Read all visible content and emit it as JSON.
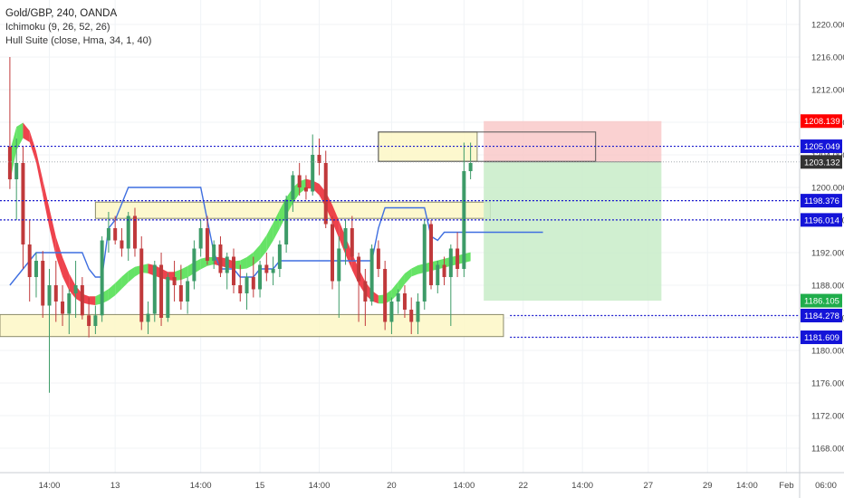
{
  "legend": {
    "symbol": "Gold/GBP, 240, OANDA",
    "indicator1": "Ichimoku (9, 26, 52, 26)",
    "indicator2": "Hull Suite (close, Hma, 34, 1, 40)"
  },
  "colors": {
    "up": "#3d9b68",
    "down": "#c0393b",
    "hull_up": "#55e055",
    "hull_down": "#ec2f3a",
    "ichimoku": "#3f6fe0",
    "zone_fill": "#fdf7c5",
    "zone_stroke": "#8a8a6a",
    "dotted": "#1a1acc",
    "stop_fill": "#f9c6c6",
    "target_fill": "#c8ecc8",
    "tag_red": "#ff0000",
    "tag_blue": "#1414d8",
    "tag_green": "#1fad4b",
    "tag_dark": "#333333"
  },
  "chart_data": {
    "type": "candlestick",
    "ylim": [
      1165,
      1223
    ],
    "xlim": [
      -1.5,
      120
    ],
    "y_ticks": [
      "1220.000",
      "1216.000",
      "1212.000",
      "1208.000",
      "1204.000",
      "1200.000",
      "1196.000",
      "1192.000",
      "1188.000",
      "1184.000",
      "1180.000",
      "1176.000",
      "1172.000",
      "1168.000"
    ],
    "x_labels": [
      {
        "index": 6,
        "label": "14:00"
      },
      {
        "index": 16,
        "label": "13"
      },
      {
        "index": 29,
        "label": "14:00"
      },
      {
        "index": 38,
        "label": "15"
      },
      {
        "index": 47,
        "label": "14:00"
      },
      {
        "index": 58,
        "label": "20"
      },
      {
        "index": 69,
        "label": "14:00"
      },
      {
        "index": 78,
        "label": "22"
      },
      {
        "index": 87,
        "label": "14:00"
      },
      {
        "index": 97,
        "label": "27"
      },
      {
        "index": 106,
        "label": "29"
      },
      {
        "index": 112,
        "label": "14:00"
      },
      {
        "index": 118,
        "label": "Feb"
      },
      {
        "index": 125,
        "label": "06:00"
      }
    ],
    "candles": [
      {
        "o": 1205.0,
        "h": 1216.0,
        "l": 1199.8,
        "c": 1201.0
      },
      {
        "o": 1201.0,
        "h": 1206.0,
        "l": 1196.0,
        "c": 1203.0
      },
      {
        "o": 1203.0,
        "h": 1205.0,
        "l": 1190.0,
        "c": 1193.0
      },
      {
        "o": 1193.0,
        "h": 1196.0,
        "l": 1186.0,
        "c": 1189.0
      },
      {
        "o": 1189.0,
        "h": 1192.0,
        "l": 1186.5,
        "c": 1191.0
      },
      {
        "o": 1191.0,
        "h": 1192.2,
        "l": 1184.0,
        "c": 1185.5
      },
      {
        "o": 1185.5,
        "h": 1190.0,
        "l": 1174.8,
        "c": 1188.0
      },
      {
        "o": 1188.0,
        "h": 1191.0,
        "l": 1183.5,
        "c": 1186.0
      },
      {
        "o": 1186.0,
        "h": 1188.0,
        "l": 1183.0,
        "c": 1184.5
      },
      {
        "o": 1184.5,
        "h": 1187.5,
        "l": 1182.0,
        "c": 1187.0
      },
      {
        "o": 1187.0,
        "h": 1191.0,
        "l": 1184.0,
        "c": 1188.0
      },
      {
        "o": 1188.0,
        "h": 1189.0,
        "l": 1183.8,
        "c": 1184.3
      },
      {
        "o": 1184.3,
        "h": 1186.5,
        "l": 1181.6,
        "c": 1183.0
      },
      {
        "o": 1183.0,
        "h": 1185.5,
        "l": 1182.0,
        "c": 1184.3
      },
      {
        "o": 1184.3,
        "h": 1194.0,
        "l": 1183.5,
        "c": 1193.5
      },
      {
        "o": 1193.5,
        "h": 1197.0,
        "l": 1192.0,
        "c": 1195.0
      },
      {
        "o": 1195.0,
        "h": 1196.5,
        "l": 1193.0,
        "c": 1193.5
      },
      {
        "o": 1193.5,
        "h": 1195.0,
        "l": 1191.5,
        "c": 1192.5
      },
      {
        "o": 1192.5,
        "h": 1197.0,
        "l": 1191.0,
        "c": 1196.5
      },
      {
        "o": 1196.5,
        "h": 1197.5,
        "l": 1191.5,
        "c": 1192.5
      },
      {
        "o": 1192.5,
        "h": 1194.0,
        "l": 1182.5,
        "c": 1183.5
      },
      {
        "o": 1183.5,
        "h": 1186.0,
        "l": 1182.0,
        "c": 1184.5
      },
      {
        "o": 1184.5,
        "h": 1191.0,
        "l": 1183.5,
        "c": 1190.5
      },
      {
        "o": 1190.5,
        "h": 1192.0,
        "l": 1183.0,
        "c": 1184.0
      },
      {
        "o": 1184.0,
        "h": 1189.5,
        "l": 1183.5,
        "c": 1189.0
      },
      {
        "o": 1189.0,
        "h": 1191.0,
        "l": 1186.0,
        "c": 1188.0
      },
      {
        "o": 1188.0,
        "h": 1190.5,
        "l": 1185.0,
        "c": 1186.0
      },
      {
        "o": 1186.0,
        "h": 1189.0,
        "l": 1184.5,
        "c": 1188.5
      },
      {
        "o": 1188.5,
        "h": 1193.5,
        "l": 1187.5,
        "c": 1192.5
      },
      {
        "o": 1192.5,
        "h": 1196.0,
        "l": 1191.5,
        "c": 1195.0
      },
      {
        "o": 1195.0,
        "h": 1196.5,
        "l": 1190.5,
        "c": 1191.0
      },
      {
        "o": 1191.0,
        "h": 1193.5,
        "l": 1190.0,
        "c": 1193.0
      },
      {
        "o": 1193.0,
        "h": 1194.0,
        "l": 1189.0,
        "c": 1189.5
      },
      {
        "o": 1189.5,
        "h": 1192.0,
        "l": 1187.5,
        "c": 1191.5
      },
      {
        "o": 1191.5,
        "h": 1192.5,
        "l": 1187.0,
        "c": 1188.0
      },
      {
        "o": 1188.0,
        "h": 1190.5,
        "l": 1186.0,
        "c": 1187.0
      },
      {
        "o": 1187.0,
        "h": 1189.5,
        "l": 1185.0,
        "c": 1189.0
      },
      {
        "o": 1189.0,
        "h": 1191.5,
        "l": 1186.5,
        "c": 1187.5
      },
      {
        "o": 1187.5,
        "h": 1191.0,
        "l": 1186.5,
        "c": 1190.5
      },
      {
        "o": 1190.5,
        "h": 1192.0,
        "l": 1188.5,
        "c": 1189.5
      },
      {
        "o": 1189.5,
        "h": 1191.5,
        "l": 1188.0,
        "c": 1190.0
      },
      {
        "o": 1190.0,
        "h": 1193.5,
        "l": 1189.0,
        "c": 1193.0
      },
      {
        "o": 1193.0,
        "h": 1199.0,
        "l": 1192.0,
        "c": 1198.5
      },
      {
        "o": 1198.5,
        "h": 1202.0,
        "l": 1197.0,
        "c": 1201.5
      },
      {
        "o": 1201.5,
        "h": 1203.0,
        "l": 1199.0,
        "c": 1200.0
      },
      {
        "o": 1200.0,
        "h": 1201.5,
        "l": 1198.5,
        "c": 1199.5
      },
      {
        "o": 1199.5,
        "h": 1206.5,
        "l": 1199.0,
        "c": 1204.0
      },
      {
        "o": 1204.0,
        "h": 1206.0,
        "l": 1201.5,
        "c": 1203.0
      },
      {
        "o": 1203.0,
        "h": 1204.5,
        "l": 1195.0,
        "c": 1195.5
      },
      {
        "o": 1195.5,
        "h": 1196.5,
        "l": 1187.5,
        "c": 1188.5
      },
      {
        "o": 1188.5,
        "h": 1194.0,
        "l": 1184.0,
        "c": 1192.5
      },
      {
        "o": 1192.5,
        "h": 1196.0,
        "l": 1190.5,
        "c": 1195.0
      },
      {
        "o": 1195.0,
        "h": 1196.5,
        "l": 1191.0,
        "c": 1191.5
      },
      {
        "o": 1191.5,
        "h": 1192.0,
        "l": 1183.5,
        "c": 1188.5
      },
      {
        "o": 1188.5,
        "h": 1190.0,
        "l": 1183.0,
        "c": 1186.0
      },
      {
        "o": 1186.0,
        "h": 1193.0,
        "l": 1185.5,
        "c": 1192.5
      },
      {
        "o": 1192.5,
        "h": 1193.5,
        "l": 1189.0,
        "c": 1190.0
      },
      {
        "o": 1190.0,
        "h": 1191.0,
        "l": 1182.5,
        "c": 1183.5
      },
      {
        "o": 1183.5,
        "h": 1186.5,
        "l": 1182.0,
        "c": 1186.0
      },
      {
        "o": 1186.0,
        "h": 1187.5,
        "l": 1184.5,
        "c": 1187.0
      },
      {
        "o": 1187.0,
        "h": 1188.0,
        "l": 1184.0,
        "c": 1185.0
      },
      {
        "o": 1185.0,
        "h": 1186.5,
        "l": 1182.0,
        "c": 1183.5
      },
      {
        "o": 1183.5,
        "h": 1187.0,
        "l": 1182.0,
        "c": 1186.0
      },
      {
        "o": 1186.0,
        "h": 1196.0,
        "l": 1185.0,
        "c": 1195.5
      },
      {
        "o": 1195.5,
        "h": 1196.0,
        "l": 1187.5,
        "c": 1188.0
      },
      {
        "o": 1188.0,
        "h": 1191.0,
        "l": 1187.0,
        "c": 1190.5
      },
      {
        "o": 1190.5,
        "h": 1191.5,
        "l": 1188.0,
        "c": 1189.0
      },
      {
        "o": 1189.0,
        "h": 1193.0,
        "l": 1183.0,
        "c": 1192.5
      },
      {
        "o": 1192.5,
        "h": 1194.5,
        "l": 1189.0,
        "c": 1190.0
      },
      {
        "o": 1190.0,
        "h": 1205.5,
        "l": 1189.0,
        "c": 1202.0
      },
      {
        "o": 1202.0,
        "h": 1205.5,
        "l": 1201.0,
        "c": 1203.0
      }
    ],
    "ichimoku_line": [
      1188,
      1189,
      1190,
      1191,
      1192,
      1192,
      1192,
      1192,
      1192,
      1192,
      1192,
      1192,
      1190,
      1189,
      1189,
      1195,
      1196,
      1198,
      1200,
      1200,
      1200,
      1200,
      1200,
      1200,
      1200,
      1200,
      1200,
      1200,
      1200,
      1200,
      1196,
      1192,
      1190,
      1190,
      1190,
      1189,
      1189,
      1189,
      1190,
      1190,
      1190,
      1191,
      1191,
      1191,
      1191,
      1191,
      1191,
      1191,
      1191,
      1191,
      1191,
      1191,
      1191,
      1191,
      1191,
      1191,
      1195,
      1197.5,
      1197.5,
      1197.5,
      1197.5,
      1197.5,
      1197.5,
      1197.5,
      1194,
      1193.5,
      1194.5,
      1194.5,
      1194.5,
      1194.5,
      1194.5,
      1194.5,
      1194.5,
      1194.5,
      1194.5,
      1194.5,
      1194.5,
      1194.5,
      1194.5,
      1194.5,
      1194.5,
      1194.5
    ],
    "hull_x": [
      0,
      1,
      2,
      3,
      4,
      5,
      6,
      7,
      8,
      9,
      10,
      11,
      12,
      13,
      14,
      15,
      16,
      17,
      18,
      19,
      20,
      21,
      22,
      23,
      24,
      25,
      26,
      27,
      28,
      29,
      30,
      31,
      32,
      33,
      34,
      35,
      36,
      37,
      38,
      39,
      40,
      41,
      42,
      43,
      44,
      45,
      46,
      47,
      48,
      49,
      50,
      51,
      52,
      53,
      54,
      55,
      56,
      57,
      58,
      59,
      60,
      61,
      62,
      63,
      64,
      65,
      66,
      67,
      68,
      69,
      70
    ],
    "hull_a": [
      1201.0,
      1205.0,
      1206.5,
      1206.0,
      1204.0,
      1200.5,
      1197.0,
      1193.5,
      1191.0,
      1189.0,
      1187.5,
      1186.5,
      1186.2,
      1186.0,
      1186.2,
      1186.6,
      1187.2,
      1188.0,
      1188.8,
      1189.5,
      1190.0,
      1190.2,
      1190.0,
      1189.6,
      1189.2,
      1189.0,
      1189.1,
      1189.4,
      1189.9,
      1190.4,
      1190.8,
      1191.0,
      1191.0,
      1190.8,
      1190.5,
      1190.4,
      1190.5,
      1190.9,
      1191.6,
      1192.6,
      1193.9,
      1195.4,
      1197.0,
      1198.5,
      1199.7,
      1200.3,
      1200.4,
      1200.0,
      1199.0,
      1197.4,
      1195.5,
      1193.5,
      1191.5,
      1189.6,
      1188.0,
      1186.9,
      1186.3,
      1186.2,
      1186.6,
      1187.4,
      1188.6,
      1189.6,
      1190.0,
      1190.2,
      1190.4,
      1190.6,
      1190.8,
      1191.0,
      1191.2,
      1191.4,
      1191.6
    ],
    "hull_b": [
      1204.0,
      1207.0,
      1207.5,
      1206.5,
      1203.5,
      1199.5,
      1195.5,
      1192.0,
      1189.5,
      1187.8,
      1186.8,
      1186.3,
      1186.1,
      1186.2,
      1186.6,
      1187.1,
      1187.8,
      1188.6,
      1189.3,
      1189.8,
      1190.0,
      1189.9,
      1189.6,
      1189.3,
      1189.1,
      1189.2,
      1189.5,
      1189.9,
      1190.4,
      1190.8,
      1191.0,
      1191.0,
      1190.8,
      1190.6,
      1190.5,
      1190.6,
      1191.0,
      1191.6,
      1192.5,
      1193.7,
      1195.2,
      1196.8,
      1198.3,
      1199.5,
      1200.3,
      1200.6,
      1200.3,
      1199.5,
      1198.0,
      1196.2,
      1194.2,
      1192.2,
      1190.3,
      1188.6,
      1187.3,
      1186.5,
      1186.2,
      1186.4,
      1187.0,
      1188.0,
      1189.0,
      1189.5,
      1189.8,
      1190.0,
      1190.2,
      1190.4,
      1190.6,
      1190.8,
      1191.0,
      1191.2,
      1191.4
    ],
    "hull_x_tail": [
      62,
      63,
      64,
      65,
      66,
      67,
      68,
      69,
      70
    ],
    "hull_a_tail": [
      1186.0,
      1186.3,
      1186.6,
      1187.0,
      1187.4,
      1187.8,
      1188.0,
      1188.3,
      1188.7
    ],
    "hull_b_tail": [
      1186.6,
      1186.6,
      1186.8,
      1187.0,
      1187.0,
      1186.8,
      1186.6,
      1186.7,
      1187.0
    ],
    "zones": [
      {
        "x0": 56,
        "x1": 71,
        "y0": 1203.2,
        "y1": 1206.8
      },
      {
        "x0": 13,
        "x1": 73,
        "y0": 1196.2,
        "y1": 1198.2
      },
      {
        "x0": -1.5,
        "x1": 75,
        "y0": 1181.7,
        "y1": 1184.4
      }
    ],
    "position": {
      "x0": 72,
      "x1": 99,
      "x_split": 89,
      "stop": 1208.139,
      "entry": 1203.132,
      "target": 1186.105
    },
    "levels": [
      {
        "value": 1205.049,
        "label": "1205.049",
        "x_start": -1.5
      },
      {
        "value": 1198.376,
        "label": "1198.376",
        "x_start": -1.5
      },
      {
        "value": 1196.014,
        "label": "1196.014",
        "x_start": -1.5
      },
      {
        "value": 1184.278,
        "label": "1184.278",
        "x_start": 76
      },
      {
        "value": 1181.609,
        "label": "1181.609",
        "x_start": 76
      }
    ],
    "price_tags": [
      {
        "value": 1208.139,
        "label": "1208.139",
        "color": "#ff0000"
      },
      {
        "value": 1205.049,
        "label": "1205.049",
        "color": "#1414d8"
      },
      {
        "value": 1203.132,
        "label": "1203.132",
        "color": "#333333"
      },
      {
        "value": 1198.376,
        "label": "1198.376",
        "color": "#1414d8"
      },
      {
        "value": 1196.014,
        "label": "1196.014",
        "color": "#1414d8"
      },
      {
        "value": 1186.105,
        "label": "1186.105",
        "color": "#1fad4b"
      },
      {
        "value": 1184.278,
        "label": "1184.278",
        "color": "#1414d8"
      },
      {
        "value": 1181.609,
        "label": "1181.609",
        "color": "#1414d8"
      }
    ],
    "last_price": 1203.132
  }
}
